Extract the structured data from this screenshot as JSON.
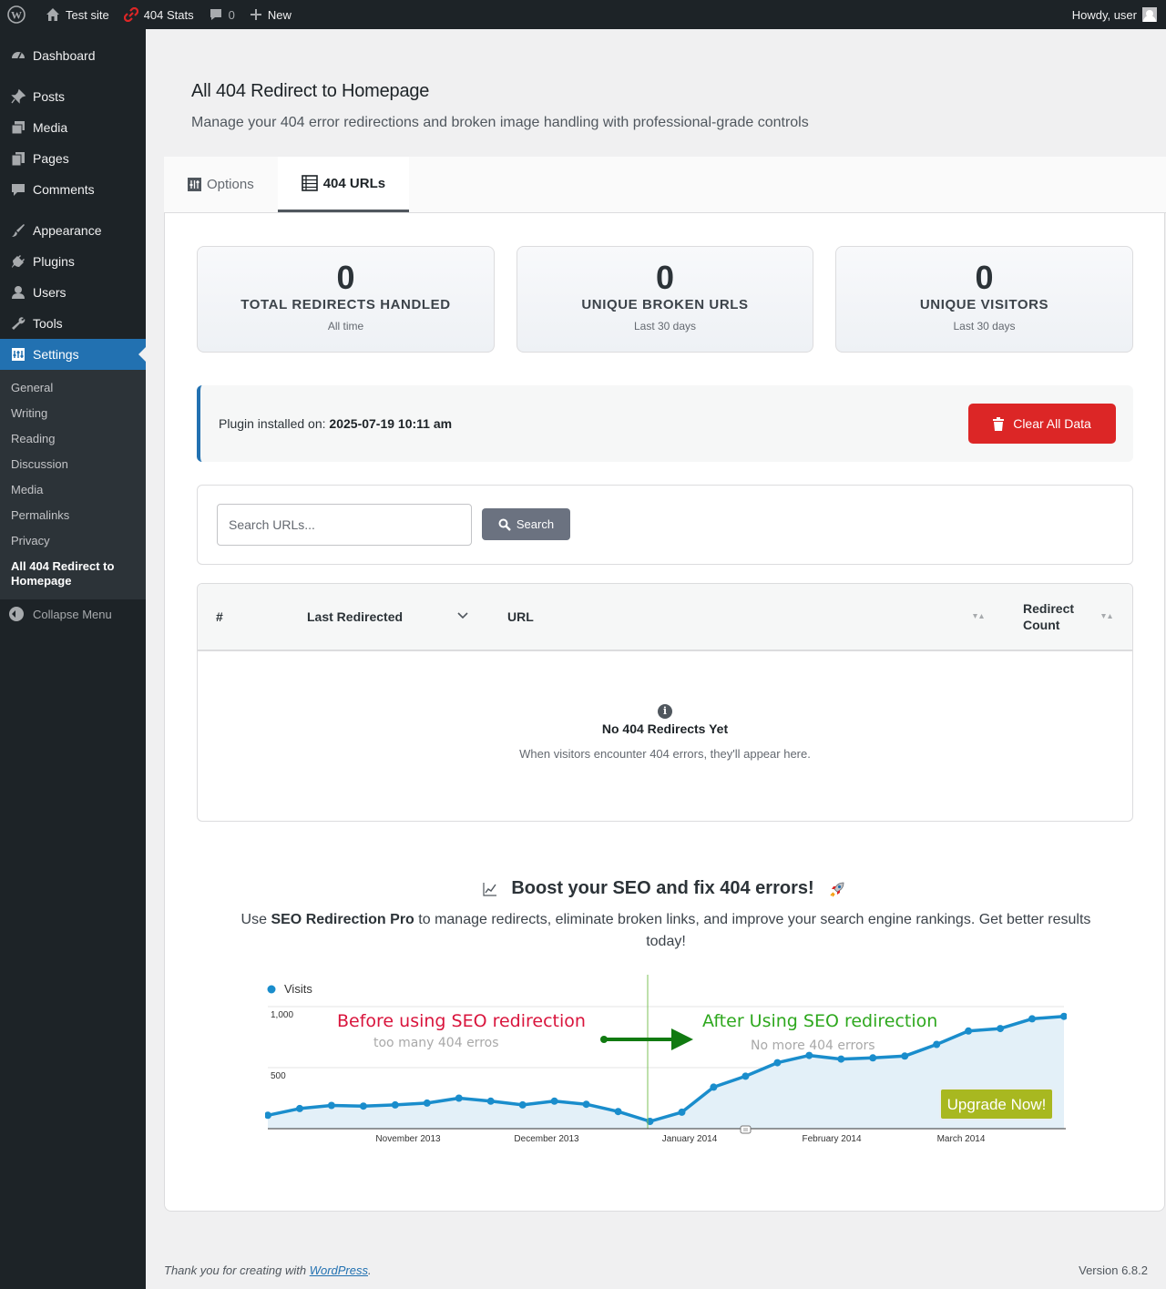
{
  "adminbar": {
    "site_name": "Test site",
    "stats_label": "404 Stats",
    "comments_count": "0",
    "new_label": "New",
    "howdy": "Howdy, user"
  },
  "sidebar": {
    "items": [
      {
        "label": "Dashboard",
        "icon": "dashboard-icon"
      },
      {
        "label": "Posts",
        "icon": "pin-icon"
      },
      {
        "label": "Media",
        "icon": "media-icon"
      },
      {
        "label": "Pages",
        "icon": "pages-icon"
      },
      {
        "label": "Comments",
        "icon": "comment-icon"
      },
      {
        "label": "Appearance",
        "icon": "brush-icon"
      },
      {
        "label": "Plugins",
        "icon": "plug-icon"
      },
      {
        "label": "Users",
        "icon": "user-icon"
      },
      {
        "label": "Tools",
        "icon": "wrench-icon"
      },
      {
        "label": "Settings",
        "icon": "settings-icon"
      }
    ],
    "submenu": [
      "General",
      "Writing",
      "Reading",
      "Discussion",
      "Media",
      "Permalinks",
      "Privacy",
      "All 404 Redirect to Homepage"
    ],
    "collapse": "Collapse Menu"
  },
  "page": {
    "title": "All 404 Redirect to Homepage",
    "subtitle": "Manage your 404 error redirections and broken image handling with professional-grade controls"
  },
  "tabs": [
    {
      "label": "Options",
      "active": false
    },
    {
      "label": "404 URLs",
      "active": true
    }
  ],
  "stats": [
    {
      "value": "0",
      "label": "TOTAL REDIRECTS HANDLED",
      "period": "All time"
    },
    {
      "value": "0",
      "label": "UNIQUE BROKEN URLS",
      "period": "Last 30 days"
    },
    {
      "value": "0",
      "label": "UNIQUE VISITORS",
      "period": "Last 30 days"
    }
  ],
  "info": {
    "installed_label": "Plugin installed on:",
    "installed_date": "2025-07-19 10:11 am",
    "clear_button": "Clear All Data"
  },
  "search": {
    "placeholder": "Search URLs...",
    "button": "Search"
  },
  "table": {
    "columns": [
      "#",
      "Last Redirected",
      "URL",
      "Redirect Count"
    ],
    "empty_title": "No 404 Redirects Yet",
    "empty_text": "When visitors encounter 404 errors, they'll appear here."
  },
  "promo": {
    "title": "Boost your SEO and fix 404 errors!",
    "text_prefix": "Use",
    "product": "SEO Redirection Pro",
    "text_suffix": "to manage redirects, eliminate broken links, and improve your search engine rankings. Get better results today!"
  },
  "chart_data": {
    "type": "area",
    "legend": "Visits",
    "yticks": [
      "1,000",
      "500"
    ],
    "ylim": [
      0,
      1000
    ],
    "xticks": [
      "November 2013",
      "December 2013",
      "January 2014",
      "February 2014",
      "March 2014"
    ],
    "values": [
      110,
      165,
      190,
      185,
      195,
      210,
      250,
      225,
      195,
      225,
      200,
      140,
      60,
      135,
      340,
      430,
      540,
      600,
      570,
      580,
      595,
      690,
      800,
      820,
      900,
      920
    ],
    "before_title": "Before using SEO redirection",
    "before_sub": "too many 404 erros",
    "after_title": "After Using SEO redirection",
    "after_sub": "No more 404 errors",
    "upgrade_button": "Upgrade Now!",
    "line_color": "#1a8dcc",
    "before_color": "#d9143c",
    "after_color": "#2ea81e",
    "button_color": "#a8b820"
  },
  "footer": {
    "thanks_prefix": "Thank you for creating with",
    "thanks_link": "WordPress",
    "thanks_suffix": ".",
    "version": "Version 6.8.2"
  }
}
